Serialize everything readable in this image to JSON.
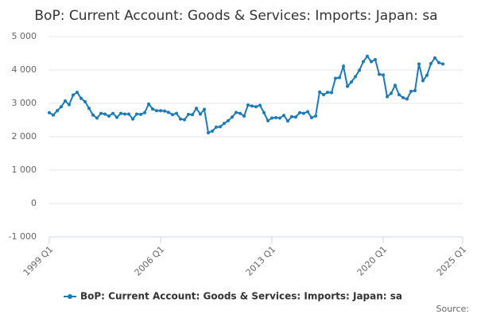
{
  "chart_data": {
    "type": "line",
    "title": "BoP: Current Account: Goods & Services: Imports: Japan: sa",
    "source": "Source:",
    "x": [
      1999,
      1999.25,
      1999.5,
      1999.75,
      2000,
      2000.25,
      2000.5,
      2000.75,
      2001,
      2001.25,
      2001.5,
      2001.75,
      2002,
      2002.25,
      2002.5,
      2002.75,
      2003,
      2003.25,
      2003.5,
      2003.75,
      2004,
      2004.25,
      2004.5,
      2004.75,
      2005,
      2005.25,
      2005.5,
      2005.75,
      2006,
      2006.25,
      2006.5,
      2006.75,
      2007,
      2007.25,
      2007.5,
      2007.75,
      2008,
      2008.25,
      2008.5,
      2008.75,
      2009,
      2009.25,
      2009.5,
      2009.75,
      2010,
      2010.25,
      2010.5,
      2010.75,
      2011,
      2011.25,
      2011.5,
      2011.75,
      2012,
      2012.25,
      2012.5,
      2012.75,
      2013,
      2013.25,
      2013.5,
      2013.75,
      2014,
      2014.25,
      2014.5,
      2014.75,
      2015,
      2015.25,
      2015.5,
      2015.75,
      2016,
      2016.25,
      2016.5,
      2016.75,
      2017,
      2017.25,
      2017.5,
      2017.75,
      2018,
      2018.25,
      2018.5,
      2018.75,
      2019,
      2019.25,
      2019.5,
      2019.75,
      2020,
      2020.25,
      2020.5,
      2020.75,
      2021,
      2021.25,
      2021.5,
      2021.75,
      2022,
      2022.25,
      2022.5,
      2022.75,
      2023,
      2023.25,
      2023.5,
      2023.75
    ],
    "series": [
      {
        "name": "BoP: Current Account: Goods & Services: Imports: Japan: sa",
        "color": "#1a7bb9",
        "values": [
          2720,
          2650,
          2780,
          2900,
          3070,
          2960,
          3250,
          3330,
          3150,
          3050,
          2850,
          2650,
          2560,
          2700,
          2680,
          2620,
          2700,
          2580,
          2700,
          2680,
          2680,
          2530,
          2680,
          2670,
          2720,
          2980,
          2830,
          2780,
          2780,
          2770,
          2730,
          2660,
          2700,
          2530,
          2510,
          2670,
          2660,
          2850,
          2680,
          2820,
          2120,
          2170,
          2290,
          2300,
          2400,
          2480,
          2590,
          2730,
          2700,
          2620,
          2950,
          2920,
          2900,
          2940,
          2720,
          2480,
          2560,
          2570,
          2560,
          2640,
          2470,
          2600,
          2590,
          2720,
          2700,
          2750,
          2570,
          2620,
          3340,
          3260,
          3330,
          3320,
          3750,
          3770,
          4110,
          3510,
          3640,
          3800,
          3990,
          4250,
          4410,
          4250,
          4310,
          3870,
          3850,
          3200,
          3300,
          3540,
          3260,
          3170,
          3130,
          3360,
          3380,
          4180,
          3680,
          3840,
          4190,
          4360,
          4220,
          4180
        ]
      }
    ],
    "xlim": [
      1999,
      2025
    ],
    "xticks": [
      {
        "value": 1999,
        "label": "1999 Q1"
      },
      {
        "value": 2006,
        "label": "2006 Q1"
      },
      {
        "value": 2013,
        "label": "2013 Q1"
      },
      {
        "value": 2020,
        "label": "2020 Q1"
      },
      {
        "value": 2025,
        "label": "2025 Q1"
      }
    ],
    "ylim": [
      -1000,
      5000
    ],
    "yticks": [
      {
        "value": -1000,
        "label": "-1 000"
      },
      0,
      {
        "value": 1000,
        "label": "1 000"
      },
      {
        "value": 2000,
        "label": "2 000"
      },
      {
        "value": 3000,
        "label": "3 000"
      },
      {
        "value": 4000,
        "label": "4 000"
      },
      {
        "value": 5000,
        "label": "5 000"
      }
    ],
    "grid": true
  }
}
